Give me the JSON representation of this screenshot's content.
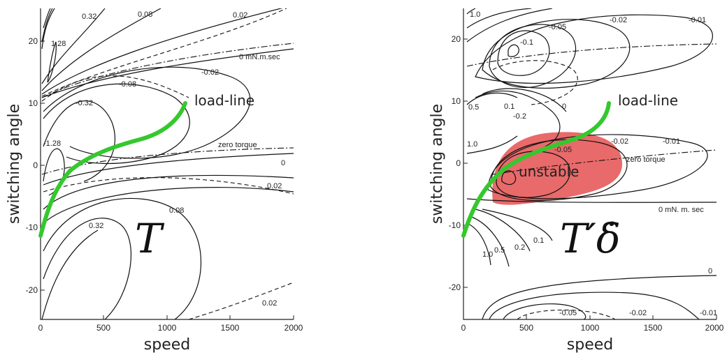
{
  "chart_data": [
    {
      "type": "line",
      "subtype": "contour",
      "panel": "left",
      "title": "T",
      "xlabel": "speed",
      "ylabel": "switching angle",
      "xlim": [
        0,
        2000
      ],
      "ylim": [
        -25,
        25
      ],
      "x_ticks": [
        0,
        500,
        1000,
        1500,
        2000
      ],
      "y_ticks": [
        -20,
        -10,
        0,
        10,
        20
      ],
      "contour_labels": [
        "0.32",
        "0.08",
        "0.02",
        "0 mN.m.sec",
        "1.28",
        "-0.02",
        "-0.08",
        "-0.32",
        "-1.28",
        "zero torque",
        "0",
        "0.02",
        "0.32",
        "0.08",
        "0.02"
      ],
      "annotations": [
        "load-line"
      ],
      "load_line": {
        "name": "load-line",
        "x": [
          0,
          150,
          400,
          800,
          1100,
          1150
        ],
        "y": [
          -11,
          -5,
          0,
          4,
          8,
          10
        ]
      },
      "series": [
        {
          "name": "load-line",
          "color": "#35c82e"
        }
      ]
    },
    {
      "type": "line",
      "subtype": "contour",
      "panel": "right",
      "title": "T′δ̇",
      "xlabel": "speed",
      "ylabel": "switching angle",
      "xlim": [
        0,
        2000
      ],
      "ylim": [
        -25,
        25
      ],
      "x_ticks": [
        0,
        500,
        1000,
        1500,
        2000
      ],
      "y_ticks": [
        -20,
        -10,
        0,
        10,
        20
      ],
      "contour_labels": [
        "1.0",
        "-0.1",
        "-0.05",
        "-0.02",
        "-0.01",
        "0.5",
        "0.1",
        "-0.2",
        "0",
        "-0.05",
        "-0.02",
        "-0.01",
        "1.0",
        "zero torque",
        "0 mN. m. sec",
        "1.0",
        "0.5",
        "0.2",
        "0.1",
        "0",
        "-0.05",
        "-0.02",
        "-0.01"
      ],
      "annotations": [
        "load-line",
        "unstable"
      ],
      "load_line": {
        "name": "load-line",
        "x": [
          0,
          150,
          400,
          800,
          1100,
          1150
        ],
        "y": [
          -11,
          -5,
          0,
          4,
          8,
          10
        ]
      },
      "series": [
        {
          "name": "load-line",
          "color": "#35c82e"
        }
      ]
    }
  ]
}
